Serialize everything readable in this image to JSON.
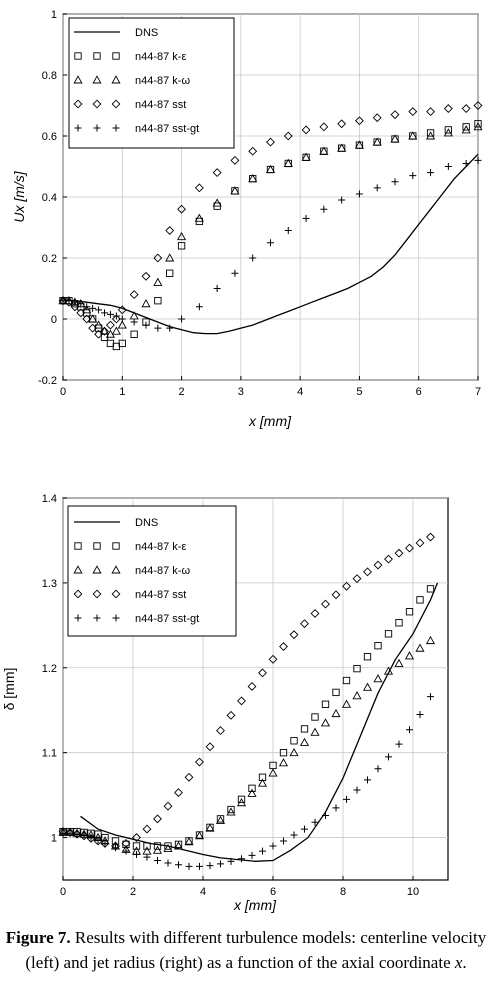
{
  "caption": {
    "label": "Figure 7.",
    "text": "Results with different turbulence models: centerline velocity (left) and jet radius (right) as a function of the axial coordinate",
    "var": "x",
    "end": "."
  },
  "chart_data": [
    {
      "type": "line",
      "xlabel": "x [mm]",
      "ylabel": "Ux [m/s]",
      "xlim": [
        0,
        7
      ],
      "ylim": [
        -0.2,
        1.0
      ],
      "xticks": [
        "0",
        "1",
        "2",
        "3",
        "4",
        "5",
        "6",
        "7"
      ],
      "yticks": [
        "-0.2",
        "0",
        "0.2",
        "0.4",
        "0.6",
        "0.8",
        "1"
      ],
      "grid": true,
      "legend": "top-left",
      "series": [
        {
          "name": "DNS",
          "style": "line",
          "color": "#000000",
          "x": [
            0,
            0.2,
            0.4,
            0.6,
            0.8,
            1.0,
            1.2,
            1.4,
            1.6,
            1.8,
            2.0,
            2.2,
            2.4,
            2.6,
            2.8,
            3.0,
            3.2,
            3.4,
            3.6,
            3.8,
            4.0,
            4.2,
            4.4,
            4.6,
            4.8,
            5.0,
            5.2,
            5.4,
            5.6,
            5.8,
            6.0,
            6.2,
            6.4,
            6.6,
            6.8,
            7.0
          ],
          "y": [
            0.06,
            0.06,
            0.055,
            0.05,
            0.045,
            0.035,
            0.02,
            0.005,
            -0.01,
            -0.025,
            -0.035,
            -0.045,
            -0.048,
            -0.048,
            -0.04,
            -0.03,
            -0.02,
            -0.005,
            0.01,
            0.025,
            0.04,
            0.055,
            0.07,
            0.085,
            0.1,
            0.12,
            0.14,
            0.17,
            0.21,
            0.26,
            0.31,
            0.36,
            0.41,
            0.46,
            0.5,
            0.54
          ]
        },
        {
          "name": "n44-87 k-ε",
          "style": "square",
          "x": [
            0,
            0.1,
            0.2,
            0.3,
            0.4,
            0.5,
            0.6,
            0.7,
            0.8,
            0.9,
            1.0,
            1.2,
            1.4,
            1.6,
            1.8,
            2.0,
            2.3,
            2.6,
            2.9,
            3.2,
            3.5,
            3.8,
            4.1,
            4.4,
            4.7,
            5.0,
            5.3,
            5.6,
            5.9,
            6.2,
            6.5,
            6.8,
            7.0
          ],
          "y": [
            0.06,
            0.06,
            0.05,
            0.04,
            0.02,
            0.0,
            -0.03,
            -0.06,
            -0.08,
            -0.09,
            -0.08,
            -0.05,
            -0.01,
            0.06,
            0.15,
            0.24,
            0.32,
            0.37,
            0.42,
            0.46,
            0.49,
            0.51,
            0.53,
            0.55,
            0.56,
            0.57,
            0.58,
            0.59,
            0.6,
            0.61,
            0.62,
            0.63,
            0.64
          ]
        },
        {
          "name": "n44-87 k-ω",
          "style": "triangle",
          "x": [
            0,
            0.1,
            0.2,
            0.3,
            0.4,
            0.5,
            0.6,
            0.7,
            0.8,
            0.9,
            1.0,
            1.2,
            1.4,
            1.6,
            1.8,
            2.0,
            2.3,
            2.6,
            2.9,
            3.2,
            3.5,
            3.8,
            4.1,
            4.4,
            4.7,
            5.0,
            5.3,
            5.6,
            5.9,
            6.2,
            6.5,
            6.8,
            7.0
          ],
          "y": [
            0.06,
            0.06,
            0.055,
            0.05,
            0.03,
            0.0,
            -0.02,
            -0.04,
            -0.05,
            -0.04,
            -0.02,
            0.01,
            0.05,
            0.12,
            0.2,
            0.27,
            0.33,
            0.38,
            0.42,
            0.46,
            0.49,
            0.51,
            0.53,
            0.55,
            0.56,
            0.57,
            0.58,
            0.59,
            0.6,
            0.6,
            0.61,
            0.62,
            0.63
          ]
        },
        {
          "name": "n44-87 sst",
          "style": "diamond",
          "x": [
            0,
            0.1,
            0.2,
            0.3,
            0.4,
            0.5,
            0.6,
            0.7,
            0.8,
            0.9,
            1.0,
            1.2,
            1.4,
            1.6,
            1.8,
            2.0,
            2.3,
            2.6,
            2.9,
            3.2,
            3.5,
            3.8,
            4.1,
            4.4,
            4.7,
            5.0,
            5.3,
            5.6,
            5.9,
            6.2,
            6.5,
            6.8,
            7.0
          ],
          "y": [
            0.06,
            0.055,
            0.04,
            0.02,
            0.0,
            -0.03,
            -0.05,
            -0.04,
            -0.02,
            0.0,
            0.03,
            0.08,
            0.14,
            0.2,
            0.29,
            0.36,
            0.43,
            0.48,
            0.52,
            0.55,
            0.58,
            0.6,
            0.62,
            0.63,
            0.64,
            0.65,
            0.66,
            0.67,
            0.68,
            0.68,
            0.69,
            0.69,
            0.7
          ]
        },
        {
          "name": "n44-87 sst-gt",
          "style": "plus",
          "x": [
            0,
            0.1,
            0.2,
            0.3,
            0.4,
            0.5,
            0.6,
            0.7,
            0.8,
            0.9,
            1.0,
            1.2,
            1.4,
            1.6,
            1.8,
            2.0,
            2.3,
            2.6,
            2.9,
            3.2,
            3.5,
            3.8,
            4.1,
            4.4,
            4.7,
            5.0,
            5.3,
            5.6,
            5.9,
            6.2,
            6.5,
            6.8,
            7.0
          ],
          "y": [
            0.06,
            0.06,
            0.055,
            0.05,
            0.04,
            0.035,
            0.03,
            0.02,
            0.015,
            0.01,
            0.0,
            -0.01,
            -0.02,
            -0.03,
            -0.03,
            0.0,
            0.04,
            0.1,
            0.15,
            0.2,
            0.25,
            0.29,
            0.33,
            0.36,
            0.39,
            0.41,
            0.43,
            0.45,
            0.47,
            0.48,
            0.5,
            0.51,
            0.52
          ]
        }
      ]
    },
    {
      "type": "line",
      "xlabel": "x [mm]",
      "ylabel": "δ [mm]",
      "xlim": [
        0,
        11
      ],
      "ylim": [
        0.95,
        1.4
      ],
      "xticks": [
        "0",
        "2",
        "4",
        "6",
        "8",
        "10"
      ],
      "yticks": [
        "1",
        "1.1",
        "1.2",
        "1.3",
        "1.4"
      ],
      "grid": true,
      "legend": "top-left",
      "series": [
        {
          "name": "DNS",
          "style": "line",
          "color": "#000000",
          "x": [
            0.5,
            1.0,
            1.5,
            2.0,
            2.5,
            3.0,
            3.5,
            4.0,
            4.5,
            5.0,
            5.5,
            6.0,
            6.5,
            7.0,
            7.5,
            8.0,
            8.5,
            9.0,
            9.5,
            10.0,
            10.5,
            10.7
          ],
          "y": [
            1.025,
            1.01,
            1.003,
            0.998,
            0.993,
            0.99,
            0.985,
            0.98,
            0.976,
            0.974,
            0.972,
            0.973,
            0.985,
            1.0,
            1.03,
            1.07,
            1.12,
            1.17,
            1.21,
            1.24,
            1.28,
            1.3
          ]
        },
        {
          "name": "n44-87 k-ε",
          "style": "square",
          "x": [
            0,
            0.2,
            0.4,
            0.6,
            0.8,
            1.0,
            1.2,
            1.5,
            1.8,
            2.1,
            2.4,
            2.7,
            3.0,
            3.3,
            3.6,
            3.9,
            4.2,
            4.5,
            4.8,
            5.1,
            5.4,
            5.7,
            6.0,
            6.3,
            6.6,
            6.9,
            7.2,
            7.5,
            7.8,
            8.1,
            8.4,
            8.7,
            9.0,
            9.3,
            9.6,
            9.9,
            10.2,
            10.5
          ],
          "y": [
            1.007,
            1.007,
            1.007,
            1.006,
            1.005,
            1.004,
            1.0,
            0.996,
            0.992,
            0.99,
            0.99,
            0.99,
            0.99,
            0.992,
            0.996,
            1.003,
            1.012,
            1.022,
            1.033,
            1.045,
            1.058,
            1.071,
            1.085,
            1.1,
            1.114,
            1.128,
            1.142,
            1.157,
            1.171,
            1.185,
            1.199,
            1.213,
            1.226,
            1.24,
            1.253,
            1.266,
            1.28,
            1.293
          ]
        },
        {
          "name": "n44-87 k-ω",
          "style": "triangle",
          "x": [
            0,
            0.2,
            0.4,
            0.6,
            0.8,
            1.0,
            1.2,
            1.5,
            1.8,
            2.1,
            2.4,
            2.7,
            3.0,
            3.3,
            3.6,
            3.9,
            4.2,
            4.5,
            4.8,
            5.1,
            5.4,
            5.7,
            6.0,
            6.3,
            6.6,
            6.9,
            7.2,
            7.5,
            7.8,
            8.1,
            8.4,
            8.7,
            9.0,
            9.3,
            9.6,
            9.9,
            10.2,
            10.5
          ],
          "y": [
            1.006,
            1.006,
            1.005,
            1.004,
            1.003,
            1.0,
            0.996,
            0.99,
            0.986,
            0.984,
            0.984,
            0.985,
            0.987,
            0.99,
            0.995,
            1.002,
            1.011,
            1.02,
            1.03,
            1.041,
            1.052,
            1.064,
            1.076,
            1.088,
            1.1,
            1.112,
            1.124,
            1.135,
            1.146,
            1.157,
            1.167,
            1.177,
            1.187,
            1.196,
            1.205,
            1.214,
            1.223,
            1.232
          ]
        },
        {
          "name": "n44-87 sst",
          "style": "diamond",
          "x": [
            0,
            0.2,
            0.4,
            0.6,
            0.8,
            1.0,
            1.2,
            1.5,
            1.8,
            2.1,
            2.4,
            2.7,
            3.0,
            3.3,
            3.6,
            3.9,
            4.2,
            4.5,
            4.8,
            5.1,
            5.4,
            5.7,
            6.0,
            6.3,
            6.6,
            6.9,
            7.2,
            7.5,
            7.8,
            8.1,
            8.4,
            8.7,
            9.0,
            9.3,
            9.6,
            9.9,
            10.2,
            10.5
          ],
          "y": [
            1.007,
            1.006,
            1.004,
            1.002,
            0.999,
            0.996,
            0.993,
            0.99,
            0.993,
            1.0,
            1.01,
            1.022,
            1.037,
            1.053,
            1.071,
            1.089,
            1.107,
            1.126,
            1.144,
            1.161,
            1.178,
            1.194,
            1.21,
            1.225,
            1.239,
            1.252,
            1.264,
            1.275,
            1.286,
            1.296,
            1.305,
            1.313,
            1.321,
            1.328,
            1.335,
            1.341,
            1.347,
            1.354
          ]
        },
        {
          "name": "n44-87 sst-gt",
          "style": "plus",
          "x": [
            0,
            0.2,
            0.4,
            0.6,
            0.8,
            1.0,
            1.2,
            1.5,
            1.8,
            2.1,
            2.4,
            2.7,
            3.0,
            3.3,
            3.6,
            3.9,
            4.2,
            4.5,
            4.8,
            5.1,
            5.4,
            5.7,
            6.0,
            6.3,
            6.6,
            6.9,
            7.2,
            7.5,
            7.8,
            8.1,
            8.4,
            8.7,
            9.0,
            9.3,
            9.6,
            9.9,
            10.2,
            10.5
          ],
          "y": [
            1.005,
            1.005,
            1.004,
            1.003,
            1.0,
            0.997,
            0.993,
            0.988,
            0.984,
            0.98,
            0.977,
            0.973,
            0.97,
            0.968,
            0.966,
            0.966,
            0.967,
            0.969,
            0.972,
            0.975,
            0.979,
            0.984,
            0.99,
            0.996,
            1.003,
            1.01,
            1.018,
            1.026,
            1.035,
            1.045,
            1.056,
            1.068,
            1.081,
            1.095,
            1.11,
            1.127,
            1.145,
            1.166
          ]
        }
      ]
    }
  ]
}
